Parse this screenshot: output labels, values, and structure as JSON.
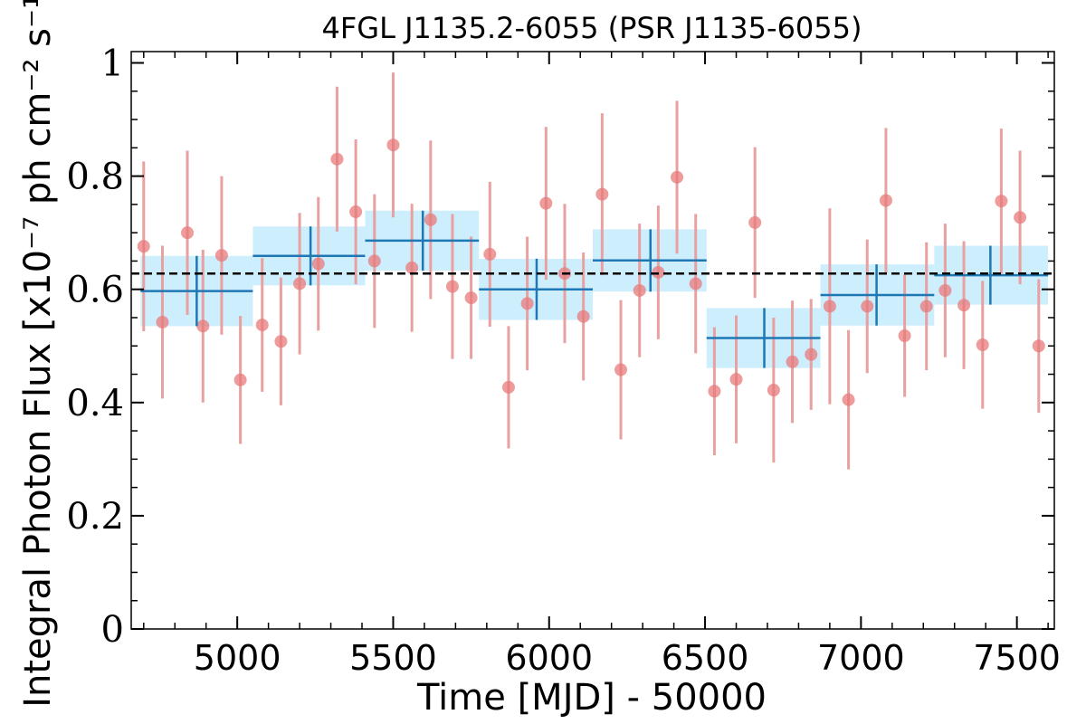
{
  "chart_data": {
    "type": "scatter",
    "title": "4FGL J1135.2-6055 (PSR J1135-6055)",
    "xlabel": "Time [MJD] - 50000",
    "ylabel": "Integral Photon Flux [x10⁻⁷ ph cm⁻² s⁻¹]",
    "xlim": [
      4660,
      7620
    ],
    "ylim": [
      0,
      1.02
    ],
    "xticks": [
      5000,
      5500,
      6000,
      6500,
      7000,
      7500
    ],
    "yticks": [
      0,
      0.2,
      0.4,
      0.6,
      0.8,
      1
    ],
    "ytick_labels": [
      "0",
      "0.2",
      "0.4",
      "0.6",
      "0.8",
      "1"
    ],
    "average_flux": 0.628,
    "colors": {
      "points": "#e8797b",
      "error_bars": "#e8a0a0",
      "bins": "#1f77b4",
      "bin_fill": "#cdeefd",
      "average_line": "#000000"
    },
    "series": [
      {
        "type": "points_with_errors",
        "x": [
          4700,
          4760,
          4840,
          4890,
          4950,
          5010,
          5080,
          5140,
          5200,
          5260,
          5320,
          5380,
          5440,
          5500,
          5560,
          5620,
          5690,
          5750,
          5810,
          5870,
          5930,
          5990,
          6050,
          6110,
          6170,
          6230,
          6290,
          6350,
          6410,
          6470,
          6530,
          6600,
          6660,
          6720,
          6780,
          6840,
          6900,
          6960,
          7020,
          7080,
          7140,
          7210,
          7270,
          7330,
          7390,
          7450,
          7510,
          7570
        ],
        "y": [
          0.676,
          0.542,
          0.7,
          0.535,
          0.66,
          0.44,
          0.537,
          0.508,
          0.61,
          0.645,
          0.83,
          0.737,
          0.65,
          0.855,
          0.638,
          0.723,
          0.605,
          0.585,
          0.662,
          0.427,
          0.575,
          0.752,
          0.628,
          0.552,
          0.768,
          0.458,
          0.598,
          0.63,
          0.798,
          0.61,
          0.42,
          0.441,
          0.718,
          0.422,
          0.472,
          0.485,
          0.57,
          0.405,
          0.57,
          0.757,
          0.518,
          0.57,
          0.598,
          0.572,
          0.502,
          0.756,
          0.727,
          0.5
        ],
        "yerr": [
          0.15,
          0.135,
          0.145,
          0.135,
          0.14,
          0.113,
          0.118,
          0.113,
          0.125,
          0.118,
          0.128,
          0.128,
          0.118,
          0.128,
          0.113,
          0.14,
          0.128,
          0.108,
          0.128,
          0.108,
          0.118,
          0.135,
          0.123,
          0.113,
          0.143,
          0.123,
          0.118,
          0.118,
          0.135,
          0.123,
          0.113,
          0.113,
          0.133,
          0.128,
          0.108,
          0.098,
          0.173,
          0.123,
          0.118,
          0.128,
          0.108,
          0.113,
          0.118,
          0.113,
          0.113,
          0.128,
          0.118,
          0.118
        ]
      },
      {
        "type": "binned",
        "x_start": [
          4690,
          5050,
          5410,
          5775,
          6140,
          6505,
          6870,
          7235
        ],
        "x_end": [
          5050,
          5410,
          5775,
          6140,
          6505,
          6870,
          7235,
          7600
        ],
        "x_center": [
          4870,
          5235,
          5595,
          5960,
          6325,
          6690,
          7050,
          7415
        ],
        "y": [
          0.597,
          0.659,
          0.686,
          0.6,
          0.651,
          0.514,
          0.59,
          0.625
        ],
        "yerr": [
          0.062,
          0.052,
          0.053,
          0.054,
          0.055,
          0.053,
          0.054,
          0.052
        ]
      }
    ]
  }
}
